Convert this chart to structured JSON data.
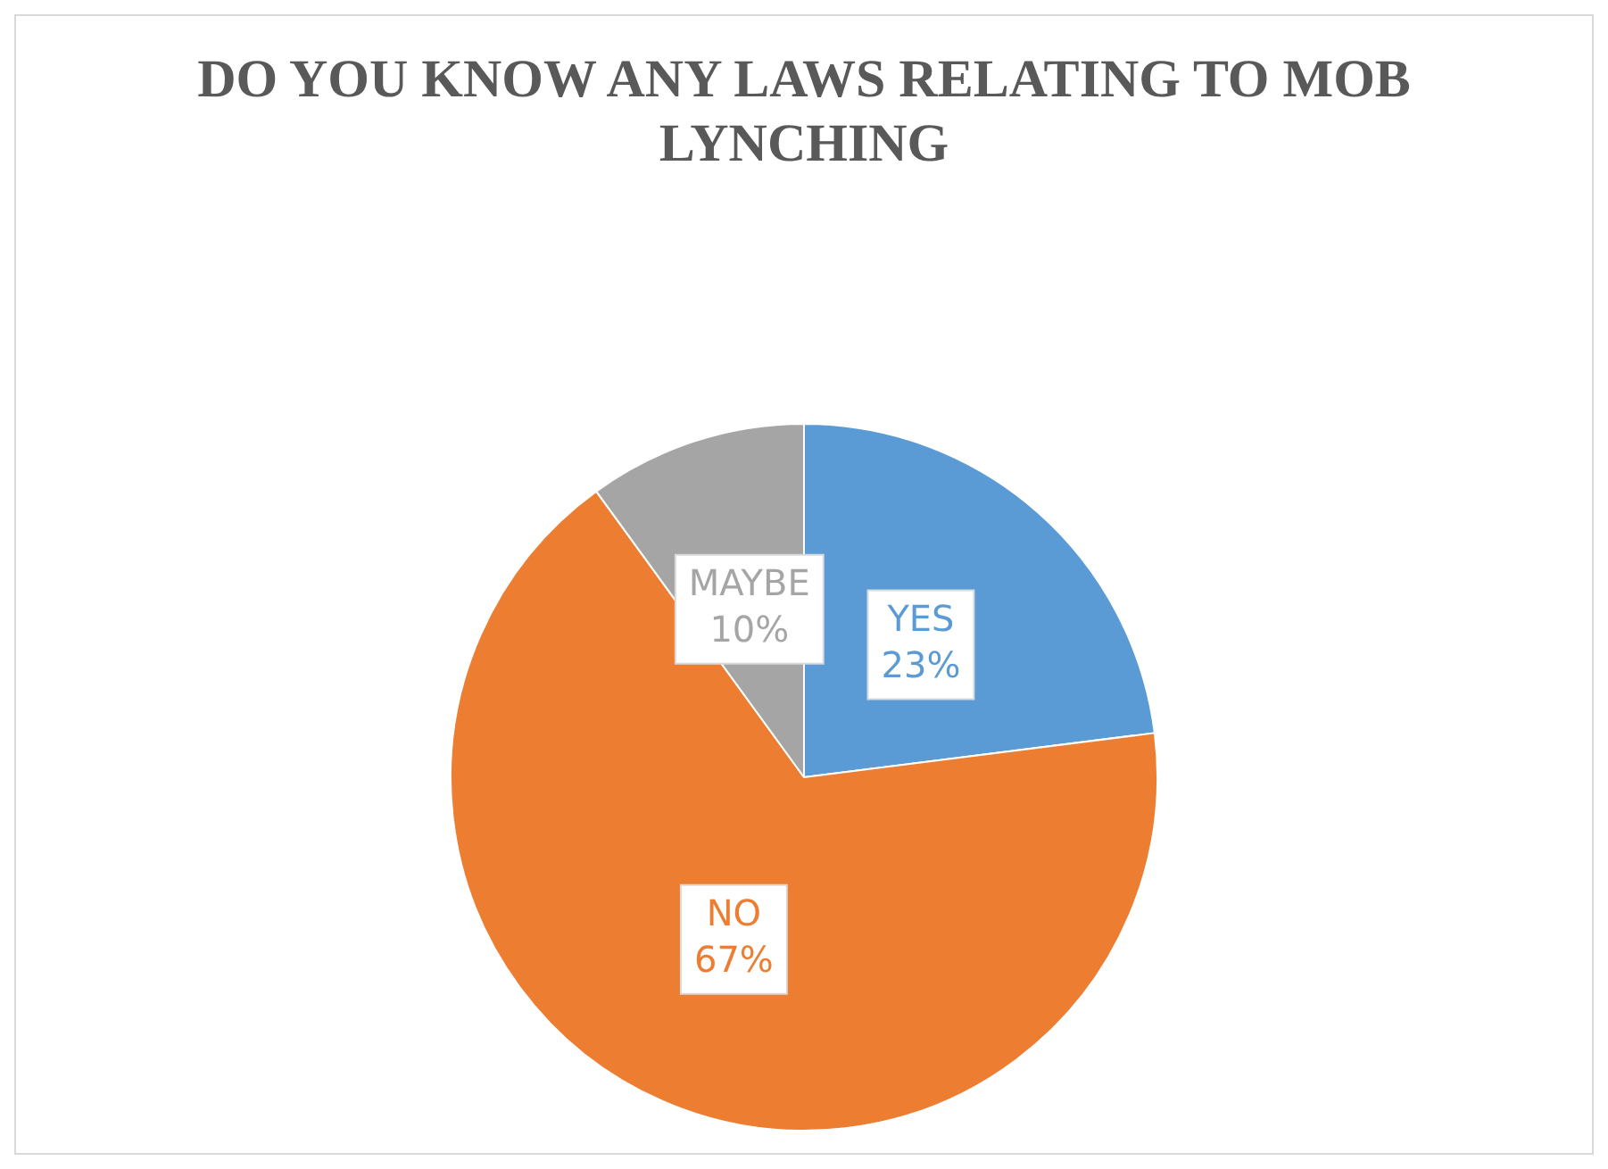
{
  "chart_data": {
    "type": "pie",
    "title": "DO YOU KNOW ANY LAWS RELATING TO MOB LYNCHING",
    "categories": [
      "YES",
      "NO",
      "MAYBE"
    ],
    "values": [
      23,
      67,
      10
    ],
    "colors": [
      "#5b9bd5",
      "#ed7d31",
      "#a5a5a5"
    ],
    "value_labels": [
      "23%",
      "67%",
      "10%"
    ],
    "legend": false
  }
}
